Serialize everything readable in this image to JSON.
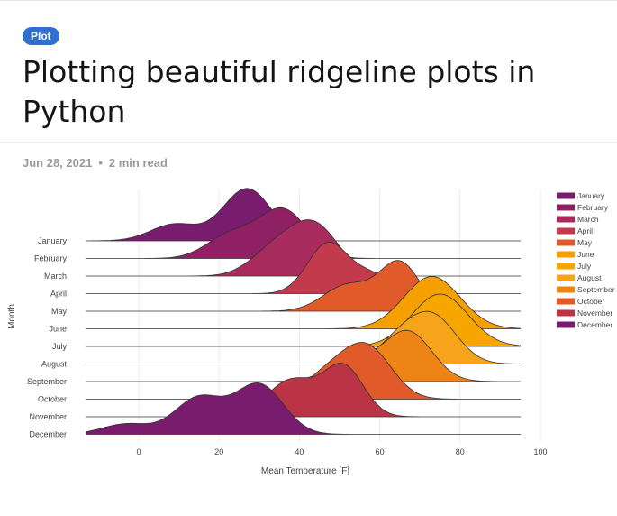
{
  "article": {
    "badge": "Plot",
    "title": "Plotting beautiful ridgeline plots in Python",
    "date": "Jun 28, 2021",
    "separator": "•",
    "read_time": "2 min read"
  },
  "chart_data": {
    "type": "area",
    "subtype": "ridgeline",
    "title": "",
    "xlabel": "Mean Temperature [F]",
    "ylabel": "Month",
    "xlim": [
      -13,
      100
    ],
    "x_ticks": [
      0,
      20,
      40,
      60,
      80,
      100
    ],
    "grid": true,
    "legend_position": "right",
    "categories": [
      "January",
      "February",
      "March",
      "April",
      "May",
      "June",
      "July",
      "August",
      "September",
      "October",
      "November",
      "December"
    ],
    "series": [
      {
        "name": "January",
        "color": "#7a1c6e",
        "range": [
          -13,
          95
        ],
        "peaks": [
          [
            9,
            0.32,
            6
          ],
          [
            27,
            1.0,
            6
          ]
        ]
      },
      {
        "name": "February",
        "color": "#8e2063",
        "range": [
          -13,
          95
        ],
        "peaks": [
          [
            23,
            0.45,
            6
          ],
          [
            36,
            0.92,
            6
          ]
        ]
      },
      {
        "name": "March",
        "color": "#a72b5d",
        "range": [
          -13,
          95
        ],
        "peaks": [
          [
            34,
            0.5,
            6
          ],
          [
            44,
            0.92,
            6
          ]
        ]
      },
      {
        "name": "April",
        "color": "#c23a4c",
        "range": [
          -13,
          95
        ],
        "peaks": [
          [
            47,
            0.95,
            5
          ],
          [
            58,
            0.35,
            5
          ]
        ]
      },
      {
        "name": "May",
        "color": "#e05a2a",
        "range": [
          -13,
          95
        ],
        "peaks": [
          [
            52,
            0.5,
            6
          ],
          [
            65,
            0.92,
            5
          ]
        ]
      },
      {
        "name": "June",
        "color": "#f5a000",
        "range": [
          -13,
          95
        ],
        "peaks": [
          [
            73,
            1.0,
            7
          ]
        ]
      },
      {
        "name": "July",
        "color": "#f7a600",
        "range": [
          -13,
          95
        ],
        "peaks": [
          [
            75,
            1.0,
            7
          ]
        ]
      },
      {
        "name": "August",
        "color": "#f6a41a",
        "range": [
          -13,
          95
        ],
        "peaks": [
          [
            64,
            0.35,
            5
          ],
          [
            73,
            0.92,
            6
          ]
        ]
      },
      {
        "name": "September",
        "color": "#ee8415",
        "range": [
          -13,
          95
        ],
        "peaks": [
          [
            53,
            0.4,
            6
          ],
          [
            67,
            0.95,
            6
          ]
        ]
      },
      {
        "name": "October",
        "color": "#e05a2a",
        "range": [
          -13,
          95
        ],
        "peaks": [
          [
            47,
            0.45,
            6
          ],
          [
            57,
            0.95,
            6
          ]
        ]
      },
      {
        "name": "November",
        "color": "#bb3445",
        "range": [
          -13,
          95
        ],
        "peaks": [
          [
            38,
            0.7,
            6
          ],
          [
            51,
            0.95,
            5
          ]
        ]
      },
      {
        "name": "December",
        "color": "#7a1c6e",
        "range": [
          -13,
          95
        ],
        "peaks": [
          [
            -3,
            0.2,
            6
          ],
          [
            15,
            0.7,
            6
          ],
          [
            30,
            0.95,
            6
          ]
        ]
      }
    ]
  }
}
